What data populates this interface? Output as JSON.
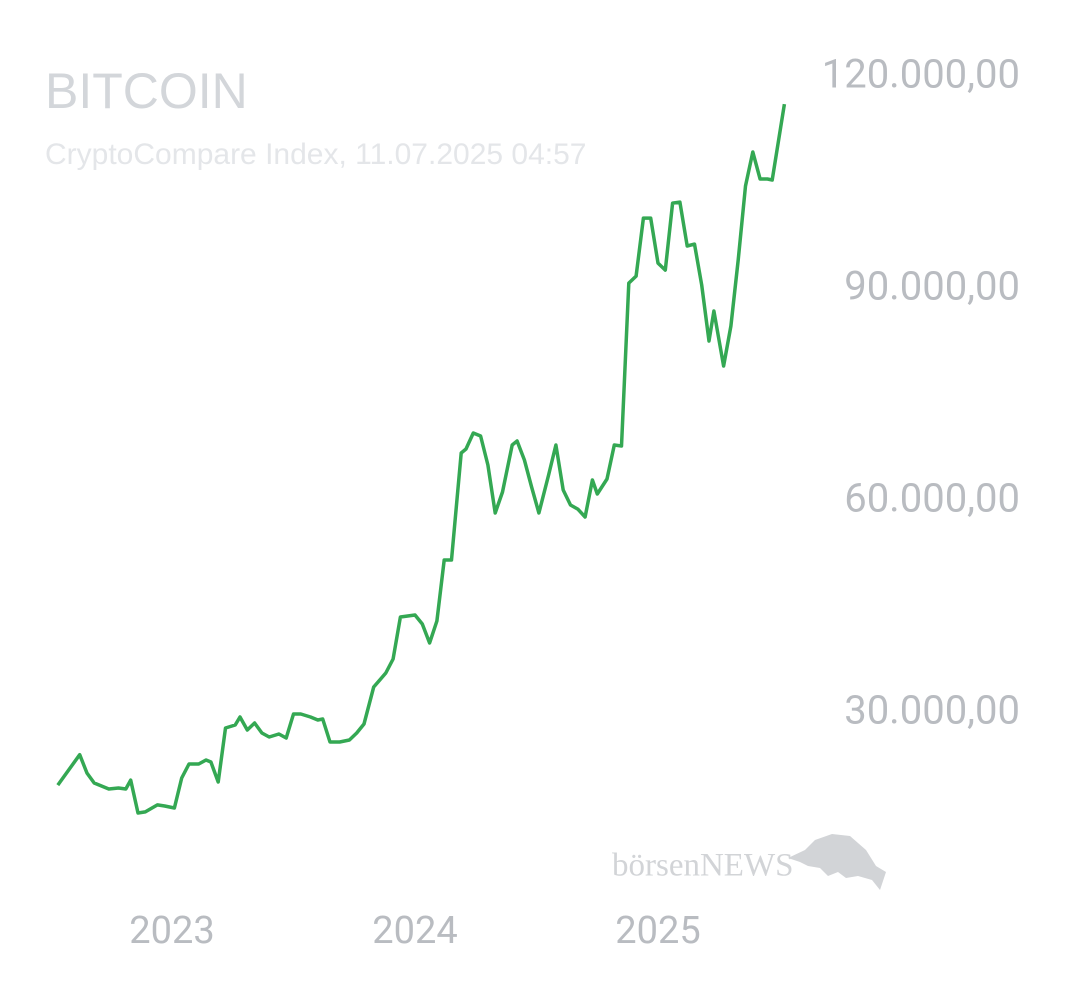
{
  "chart_data": {
    "type": "line",
    "title": "BITCOIN",
    "subtitle": "CryptoCompare Index, 11.07.2025 04:57",
    "watermark": "börsenNEWS",
    "color": "#34a853",
    "x": [
      2022.53,
      2022.62,
      2022.65,
      2022.68,
      2022.74,
      2022.78,
      2022.81,
      2022.83,
      2022.86,
      2022.89,
      2022.94,
      2022.97,
      2023.01,
      2023.04,
      2023.07,
      2023.11,
      2023.14,
      2023.16,
      2023.19,
      2023.22,
      2023.26,
      2023.28,
      2023.31,
      2023.34,
      2023.37,
      2023.4,
      2023.44,
      2023.47,
      2023.5,
      2023.53,
      2023.57,
      2023.6,
      2023.62,
      2023.65,
      2023.69,
      2023.73,
      2023.76,
      2023.79,
      2023.83,
      2023.88,
      2023.91,
      2023.94,
      2024.0,
      2024.03,
      2024.06,
      2024.09,
      2024.12,
      2024.15,
      2024.19,
      2024.21,
      2024.24,
      2024.27,
      2024.3,
      2024.33,
      2024.36,
      2024.4,
      2024.42,
      2024.45,
      2024.48,
      2024.51,
      2024.55,
      2024.58,
      2024.61,
      2024.64,
      2024.67,
      2024.7,
      2024.73,
      2024.75,
      2024.79,
      2024.82,
      2024.85,
      2024.88,
      2024.91,
      2024.94,
      2024.97,
      2025.0,
      2025.03,
      2025.06,
      2025.09,
      2025.12,
      2025.15,
      2025.18,
      2025.21,
      2025.23,
      2025.27,
      2025.3,
      2025.33,
      2025.36,
      2025.39,
      2025.42,
      2025.45,
      2025.47,
      2025.52
    ],
    "values": [
      19800,
      24100,
      21500,
      20100,
      19240,
      19390,
      19240,
      20500,
      15850,
      16000,
      17000,
      16840,
      16560,
      20800,
      22780,
      22780,
      23350,
      23060,
      20230,
      27880,
      28300,
      29430,
      27600,
      28580,
      27170,
      26600,
      27030,
      26460,
      29860,
      29860,
      29430,
      29010,
      29150,
      25900,
      25900,
      26180,
      27170,
      28440,
      33680,
      35660,
      37640,
      43580,
      43870,
      42590,
      39900,
      43020,
      51650,
      51650,
      66790,
      67360,
      69620,
      69200,
      65090,
      58300,
      61270,
      67920,
      68490,
      65800,
      61980,
      58300,
      63680,
      67920,
      61550,
      59430,
      58860,
      57730,
      62970,
      60990,
      63110,
      67920,
      67780,
      90840,
      91830,
      100040,
      100040,
      93670,
      92680,
      102160,
      102300,
      96080,
      96360,
      90560,
      82640,
      86880,
      79100,
      84760,
      94100,
      104570,
      109380,
      105560,
      105560,
      105420,
      116170
    ],
    "xlim": [
      2022.5,
      2025.55
    ],
    "xticks": [
      2023,
      2024,
      2025
    ],
    "ylim": [
      0,
      120000
    ],
    "yticks": [
      {
        "value": 30000,
        "label": "30.000,00"
      },
      {
        "value": 60000,
        "label": "60.000,00"
      },
      {
        "value": 90000,
        "label": "90.000,00"
      },
      {
        "value": 120000,
        "label": "120.000,00"
      }
    ]
  }
}
